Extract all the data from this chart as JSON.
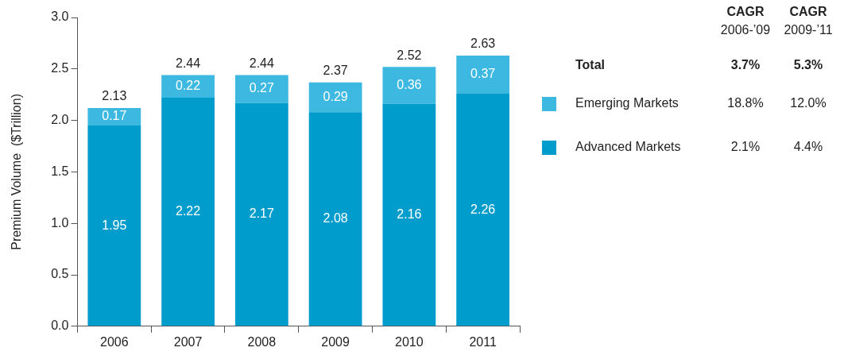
{
  "chart_data": {
    "type": "bar",
    "stacked": true,
    "ylabel": "Premium Volume  ($Trillion)",
    "categories": [
      "2006",
      "2007",
      "2008",
      "2009",
      "2010",
      "2011"
    ],
    "series": [
      {
        "name": "Advanced Markets",
        "color": "#009ccc",
        "values": [
          1.95,
          2.22,
          2.17,
          2.08,
          2.16,
          2.26
        ]
      },
      {
        "name": "Emerging Markets",
        "color": "#3db9e1",
        "values": [
          0.17,
          0.22,
          0.27,
          0.29,
          0.36,
          0.37
        ]
      }
    ],
    "ylim": [
      0,
      3
    ],
    "yticks": [
      {
        "value": 0,
        "label": "0.0"
      },
      {
        "value": 0.5,
        "label": "0.5"
      },
      {
        "value": 1,
        "label": "1.0"
      },
      {
        "value": 1.5,
        "label": "1.5"
      },
      {
        "value": 2,
        "label": "2.0"
      },
      {
        "value": 2.5,
        "label": "2.5"
      },
      {
        "value": 3,
        "label": "3.0"
      }
    ],
    "data_labels": true,
    "totals": [
      "2.13",
      "2.44",
      "2.44",
      "2.37",
      "2.52",
      "2.63"
    ],
    "legend": "right",
    "grid": false,
    "annotations": [
      "CAGR",
      "2006-’09",
      "CAGR",
      "2009-’11",
      "Total",
      "3.7%",
      "5.3%",
      "18.8%",
      "12.0%",
      "2.1%",
      "4.4%"
    ]
  }
}
